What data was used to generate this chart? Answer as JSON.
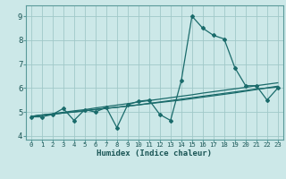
{
  "xlabel": "Humidex (Indice chaleur)",
  "xlim": [
    -0.5,
    23.5
  ],
  "ylim": [
    3.85,
    9.45
  ],
  "xticks": [
    0,
    1,
    2,
    3,
    4,
    5,
    6,
    7,
    8,
    9,
    10,
    11,
    12,
    13,
    14,
    15,
    16,
    17,
    18,
    19,
    20,
    21,
    22,
    23
  ],
  "yticks": [
    4,
    5,
    6,
    7,
    8,
    9
  ],
  "bg_color": "#cce8e8",
  "grid_color": "#a0c8c8",
  "line_color": "#1a6b6b",
  "data_x": [
    0,
    1,
    2,
    3,
    4,
    5,
    6,
    7,
    8,
    9,
    10,
    11,
    12,
    13,
    14,
    15,
    16,
    17,
    18,
    19,
    20,
    21,
    22,
    23
  ],
  "data_y_main": [
    4.8,
    4.8,
    4.9,
    5.15,
    4.65,
    5.1,
    5.0,
    5.2,
    4.35,
    5.3,
    5.45,
    5.5,
    4.9,
    4.65,
    6.3,
    9.0,
    8.5,
    8.2,
    8.05,
    6.85,
    6.1,
    6.1,
    5.5,
    6.0
  ],
  "data_y_trend1": [
    4.82,
    4.88,
    4.93,
    4.99,
    5.05,
    5.1,
    5.17,
    5.23,
    5.29,
    5.35,
    5.42,
    5.48,
    5.54,
    5.6,
    5.66,
    5.72,
    5.79,
    5.85,
    5.91,
    5.97,
    6.03,
    6.1,
    6.16,
    6.22
  ],
  "data_y_curve1": [
    4.82,
    4.87,
    4.91,
    4.96,
    5.01,
    5.06,
    5.11,
    5.16,
    5.2,
    5.25,
    5.3,
    5.35,
    5.4,
    5.45,
    5.5,
    5.56,
    5.62,
    5.68,
    5.74,
    5.8,
    5.87,
    5.94,
    6.01,
    6.08
  ],
  "data_y_curve2": [
    4.82,
    4.87,
    4.91,
    4.96,
    5.0,
    5.05,
    5.1,
    5.15,
    5.2,
    5.25,
    5.3,
    5.36,
    5.42,
    5.48,
    5.54,
    5.6,
    5.66,
    5.72,
    5.78,
    5.84,
    5.9,
    5.96,
    6.0,
    6.05
  ]
}
